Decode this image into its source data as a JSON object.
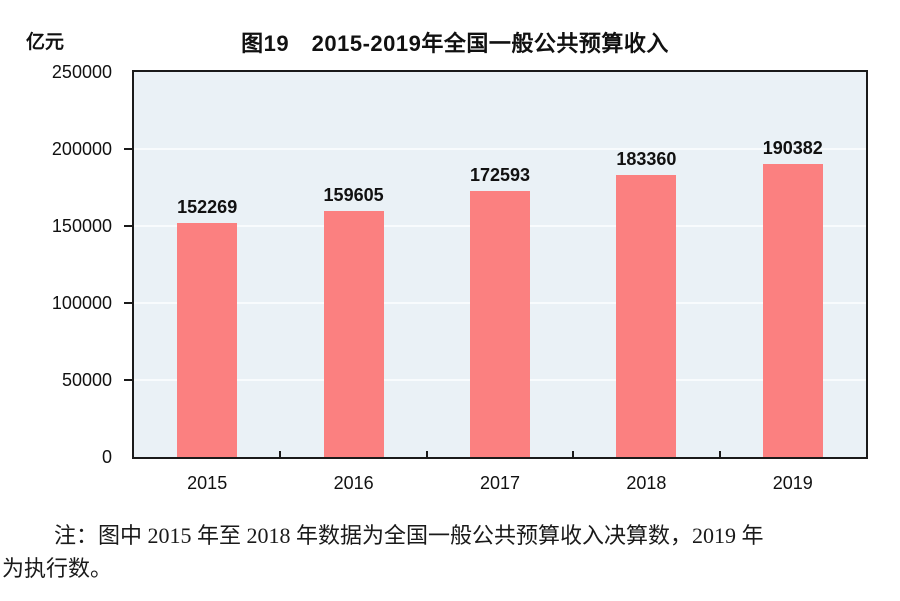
{
  "figure": {
    "title": "图19　2015-2019年全国一般公共预算收入",
    "unit_label": "亿元"
  },
  "chart_data": {
    "type": "bar",
    "title": "图19　2015-2019年全国一般公共预算收入",
    "ylabel": "亿元",
    "xlabel": "",
    "categories": [
      "2015",
      "2016",
      "2017",
      "2018",
      "2019"
    ],
    "values": [
      152269,
      159605,
      172593,
      183360,
      190382
    ],
    "ylim": [
      0,
      250000
    ],
    "yticks": [
      0,
      50000,
      100000,
      150000,
      200000,
      250000
    ],
    "grid": true,
    "legend_position": "none",
    "value_labels_shown": true
  },
  "colors": {
    "bar": "#FB8080",
    "plot_background": "#EAF1F6",
    "gridline": "#F8FBFD",
    "axis": "#1a1a1a",
    "text": "#111111"
  },
  "note": {
    "line1": "注：图中 2015 年至 2018 年数据为全国一般公共预算收入决算数，2019 年",
    "line2": "为执行数。"
  }
}
